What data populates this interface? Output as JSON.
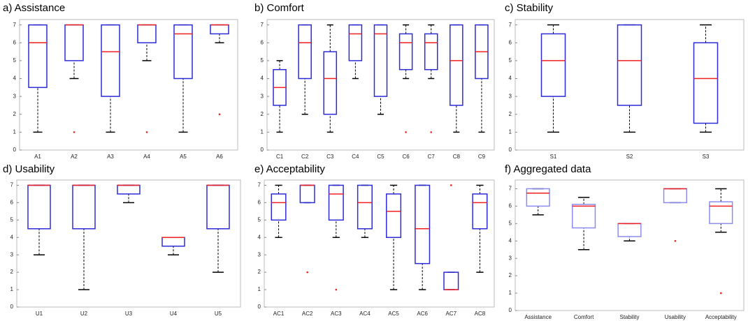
{
  "chart_data": [
    {
      "type": "box",
      "title": "a) Assistance",
      "color": "#2b2bd9",
      "ylim": [
        0,
        7.3
      ],
      "yticks": [
        0,
        1,
        2,
        3,
        4,
        5,
        6,
        7
      ],
      "categories": [
        "A1",
        "A2",
        "A3",
        "A4",
        "A5",
        "A6"
      ],
      "boxes": [
        {
          "low": 1,
          "q1": 3.5,
          "median": 6,
          "q3": 7,
          "high": 7
        },
        {
          "low": 4,
          "q1": 5,
          "median": 7,
          "q3": 7,
          "high": 7,
          "outliers": [
            1
          ]
        },
        {
          "low": 1,
          "q1": 3,
          "median": 5.5,
          "q3": 7,
          "high": 7
        },
        {
          "low": 5,
          "q1": 6,
          "median": 7,
          "q3": 7,
          "high": 7,
          "outliers": [
            1
          ]
        },
        {
          "low": 1,
          "q1": 4,
          "median": 6.5,
          "q3": 7,
          "high": 7
        },
        {
          "low": 6,
          "q1": 6.5,
          "median": 7,
          "q3": 7,
          "high": 7,
          "outliers": [
            2
          ]
        }
      ]
    },
    {
      "type": "box",
      "title": "b) Comfort",
      "color": "#2b2bd9",
      "ylim": [
        0,
        7.3
      ],
      "yticks": [
        0,
        1,
        2,
        3,
        4,
        5,
        6,
        7
      ],
      "categories": [
        "C1",
        "C2",
        "C3",
        "C4",
        "C5",
        "C6",
        "C7",
        "C8",
        "C9"
      ],
      "boxes": [
        {
          "low": 1,
          "q1": 2.5,
          "median": 3.5,
          "q3": 4.5,
          "high": 5
        },
        {
          "low": 2,
          "q1": 4,
          "median": 6,
          "q3": 7,
          "high": 7
        },
        {
          "low": 1,
          "q1": 2,
          "median": 4,
          "q3": 5.5,
          "high": 7
        },
        {
          "low": 4,
          "q1": 5,
          "median": 6.5,
          "q3": 7,
          "high": 7
        },
        {
          "low": 2,
          "q1": 3,
          "median": 6.5,
          "q3": 7,
          "high": 7
        },
        {
          "low": 4,
          "q1": 4.5,
          "median": 6,
          "q3": 6.5,
          "high": 7,
          "outliers": [
            1
          ]
        },
        {
          "low": 4,
          "q1": 4.5,
          "median": 6,
          "q3": 6.5,
          "high": 7,
          "outliers": [
            1
          ]
        },
        {
          "low": 1,
          "q1": 2.5,
          "median": 5,
          "q3": 7,
          "high": 7
        },
        {
          "low": 1,
          "q1": 4,
          "median": 5.5,
          "q3": 7,
          "high": 7
        }
      ]
    },
    {
      "type": "box",
      "title": "c) Stability",
      "color": "#2b2bd9",
      "ylim": [
        0,
        7.3
      ],
      "yticks": [
        0,
        1,
        2,
        3,
        4,
        5,
        6,
        7
      ],
      "categories": [
        "S1",
        "S2",
        "S3"
      ],
      "boxes": [
        {
          "low": 1,
          "q1": 3,
          "median": 5,
          "q3": 6.5,
          "high": 7
        },
        {
          "low": 1,
          "q1": 2.5,
          "median": 5,
          "q3": 7,
          "high": 7
        },
        {
          "low": 1,
          "q1": 1.5,
          "median": 4,
          "q3": 6,
          "high": 7
        }
      ]
    },
    {
      "type": "box",
      "title": "d) Usability",
      "color": "#2b2bd9",
      "ylim": [
        0,
        7.3
      ],
      "yticks": [
        0,
        1,
        2,
        3,
        4,
        5,
        6,
        7
      ],
      "categories": [
        "U1",
        "U2",
        "U3",
        "U4",
        "U5"
      ],
      "boxes": [
        {
          "low": 3,
          "q1": 4.5,
          "median": 7,
          "q3": 7,
          "high": 7
        },
        {
          "low": 1,
          "q1": 4.5,
          "median": 7,
          "q3": 7,
          "high": 7
        },
        {
          "low": 6,
          "q1": 6.5,
          "median": 7,
          "q3": 7,
          "high": 7
        },
        {
          "low": 3,
          "q1": 3.5,
          "median": 4,
          "q3": 4,
          "high": 4
        },
        {
          "low": 2,
          "q1": 4.5,
          "median": 7,
          "q3": 7,
          "high": 7
        }
      ]
    },
    {
      "type": "box",
      "title": "e) Acceptability",
      "color": "#2b2bd9",
      "ylim": [
        0,
        7.3
      ],
      "yticks": [
        0,
        1,
        2,
        3,
        4,
        5,
        6,
        7
      ],
      "categories": [
        "AC1",
        "AC2",
        "AC3",
        "AC4",
        "AC5",
        "AC6",
        "AC7",
        "AC8"
      ],
      "boxes": [
        {
          "low": 4,
          "q1": 5,
          "median": 6,
          "q3": 6.5,
          "high": 7
        },
        {
          "low": 6,
          "q1": 6,
          "median": 7,
          "q3": 7,
          "high": 7,
          "outliers": [
            2
          ]
        },
        {
          "low": 4,
          "q1": 5,
          "median": 6.5,
          "q3": 7,
          "high": 7,
          "outliers": [
            1
          ]
        },
        {
          "low": 4,
          "q1": 4.5,
          "median": 6,
          "q3": 7,
          "high": 7
        },
        {
          "low": 1,
          "q1": 4,
          "median": 5.5,
          "q3": 6.5,
          "high": 7
        },
        {
          "low": 1,
          "q1": 2.5,
          "median": 4.5,
          "q3": 7,
          "high": 7
        },
        {
          "low": 1,
          "q1": 1,
          "median": 1,
          "q3": 2,
          "high": 2,
          "outliers": [
            7
          ]
        },
        {
          "low": 2,
          "q1": 4.5,
          "median": 6,
          "q3": 6.5,
          "high": 7
        }
      ]
    },
    {
      "type": "box",
      "title": "f) Aggregated data",
      "color": "#8c8cf0",
      "ylim": [
        0,
        7.5
      ],
      "yticks": [
        0,
        1,
        2,
        3,
        4,
        5,
        6,
        7
      ],
      "categories": [
        "Assistance",
        "Comfort",
        "Stability",
        "Usability",
        "Acceptability"
      ],
      "boxes": [
        {
          "low": 5.5,
          "q1": 6,
          "median": 6.75,
          "q3": 7,
          "high": 7
        },
        {
          "low": 3.5,
          "q1": 4.75,
          "median": 6,
          "q3": 6.1,
          "high": 6.5
        },
        {
          "low": 4,
          "q1": 4.25,
          "median": 5,
          "q3": 5,
          "high": 5
        },
        {
          "low": 6.2,
          "q1": 6.2,
          "median": 7,
          "q3": 7,
          "high": 7,
          "outliers": [
            4
          ]
        },
        {
          "low": 4.5,
          "q1": 5,
          "median": 6,
          "q3": 6.25,
          "high": 7,
          "outliers": [
            1
          ]
        }
      ]
    }
  ]
}
